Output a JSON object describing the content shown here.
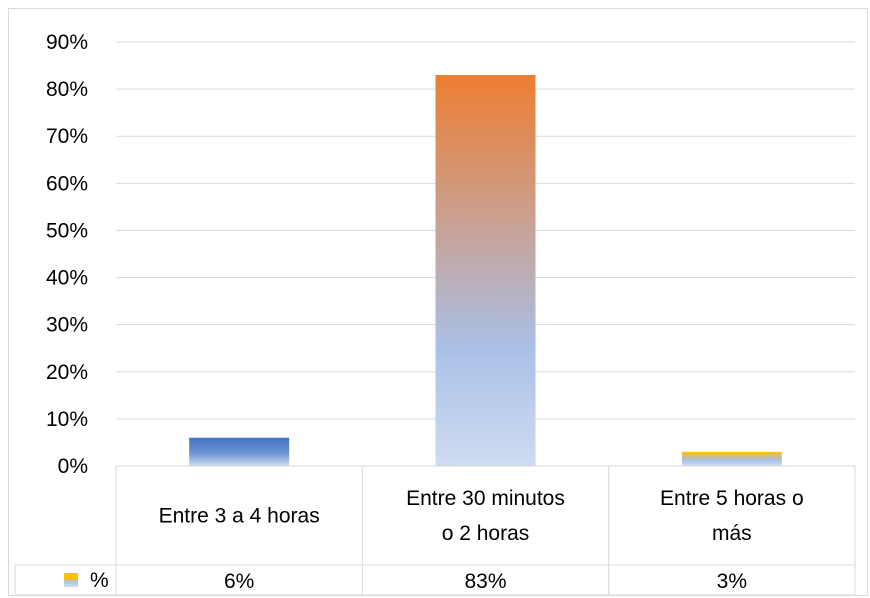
{
  "chart_data": {
    "type": "bar",
    "categories": [
      [
        "Entre 3 a 4 horas"
      ],
      [
        "Entre 30 minutos",
        "o 2 horas"
      ],
      [
        "Entre 5 horas o",
        "más"
      ]
    ],
    "series": [
      {
        "name": "%",
        "values": [
          6,
          83,
          3
        ],
        "value_labels": [
          "6%",
          "83%",
          "3%"
        ],
        "colors": [
          "#4472c4",
          "#ed7d31",
          "#ffc000"
        ]
      }
    ],
    "ylim": [
      0,
      90
    ],
    "yticks": [
      0,
      10,
      20,
      30,
      40,
      50,
      60,
      70,
      80,
      90
    ],
    "ytick_labels": [
      "0%",
      "10%",
      "20%",
      "30%",
      "40%",
      "50%",
      "60%",
      "70%",
      "80%",
      "90%"
    ],
    "grid": true,
    "legend": "data-table",
    "title": "",
    "xlabel": "",
    "ylabel": ""
  }
}
